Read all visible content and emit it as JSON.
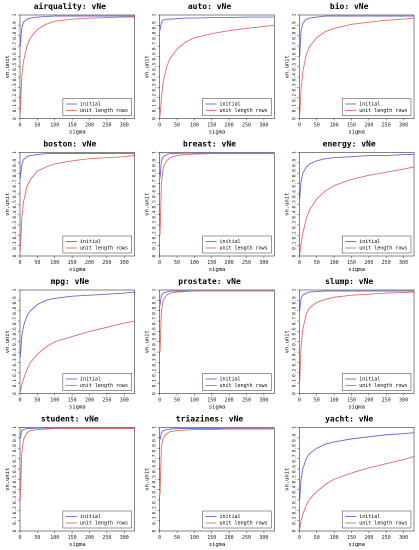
{
  "panel_grid": {
    "columns": 3,
    "rows": 4
  },
  "chart_data": [
    {
      "type": "line",
      "title": "airquality: vNe",
      "xlabel": "sigma",
      "ylabel": "vn.unit",
      "xlim": [
        0,
        330
      ],
      "ylim": [
        0,
        1
      ],
      "xticks": [
        0,
        50,
        100,
        150,
        200,
        250,
        300
      ],
      "yticks": [
        0,
        0.1,
        0.2,
        0.3,
        0.4,
        0.5,
        0.6,
        0.7,
        0.8,
        0.9,
        1
      ],
      "x": [
        1,
        5,
        10,
        20,
        30,
        50,
        75,
        100,
        150,
        200,
        250,
        300,
        330
      ],
      "series": [
        {
          "name": "initial",
          "color": "#6666dd",
          "values": [
            0.7,
            0.87,
            0.93,
            0.96,
            0.97,
            0.98,
            0.985,
            0.99,
            0.99,
            0.99,
            0.99,
            0.99,
            0.99
          ]
        },
        {
          "name": "unit length rows",
          "color": "#e26a6a",
          "values": [
            0.05,
            0.4,
            0.55,
            0.7,
            0.78,
            0.86,
            0.91,
            0.94,
            0.96,
            0.97,
            0.975,
            0.98,
            0.98
          ]
        }
      ],
      "legend_position": "bottom-right"
    },
    {
      "type": "line",
      "title": "auto: vNe",
      "xlabel": "sigma",
      "ylabel": "vn.unit",
      "xlim": [
        0,
        330
      ],
      "ylim": [
        0,
        1
      ],
      "xticks": [
        0,
        50,
        100,
        150,
        200,
        250,
        300
      ],
      "yticks": [
        0,
        0.1,
        0.2,
        0.3,
        0.4,
        0.5,
        0.6,
        0.7,
        0.8,
        0.9,
        1
      ],
      "x": [
        1,
        5,
        10,
        20,
        30,
        50,
        75,
        100,
        150,
        200,
        250,
        300,
        330
      ],
      "series": [
        {
          "name": "initial",
          "color": "#6666dd",
          "values": [
            0.85,
            0.93,
            0.95,
            0.96,
            0.96,
            0.965,
            0.97,
            0.97,
            0.975,
            0.975,
            0.98,
            0.98,
            0.98
          ]
        },
        {
          "name": "unit length rows",
          "color": "#e26a6a",
          "values": [
            0.02,
            0.2,
            0.35,
            0.5,
            0.58,
            0.67,
            0.74,
            0.78,
            0.82,
            0.85,
            0.87,
            0.89,
            0.9
          ]
        }
      ],
      "legend_position": "bottom-right"
    },
    {
      "type": "line",
      "title": "bio: vNe",
      "xlabel": "sigma",
      "ylabel": "vn.unit",
      "xlim": [
        0,
        330
      ],
      "ylim": [
        0,
        1
      ],
      "xticks": [
        0,
        50,
        100,
        150,
        200,
        250,
        300
      ],
      "yticks": [
        0,
        0.1,
        0.2,
        0.3,
        0.4,
        0.5,
        0.6,
        0.7,
        0.8,
        0.9,
        1
      ],
      "x": [
        1,
        5,
        10,
        20,
        30,
        50,
        75,
        100,
        150,
        200,
        250,
        300,
        330
      ],
      "series": [
        {
          "name": "initial",
          "color": "#6666dd",
          "values": [
            0.6,
            0.85,
            0.92,
            0.96,
            0.97,
            0.98,
            0.99,
            0.99,
            0.99,
            0.99,
            0.99,
            0.99,
            0.99
          ]
        },
        {
          "name": "unit length rows",
          "color": "#e26a6a",
          "values": [
            0.03,
            0.28,
            0.45,
            0.62,
            0.7,
            0.78,
            0.84,
            0.87,
            0.91,
            0.93,
            0.95,
            0.96,
            0.97
          ]
        }
      ],
      "legend_position": "bottom-right"
    },
    {
      "type": "line",
      "title": "boston: vNe",
      "xlabel": "sigma",
      "ylabel": "vn.unit",
      "xlim": [
        0,
        330
      ],
      "ylim": [
        0,
        1
      ],
      "xticks": [
        0,
        50,
        100,
        150,
        200,
        250,
        300
      ],
      "yticks": [
        0,
        0.1,
        0.2,
        0.3,
        0.4,
        0.5,
        0.6,
        0.7,
        0.8,
        0.9,
        1
      ],
      "x": [
        1,
        5,
        10,
        20,
        30,
        50,
        75,
        100,
        150,
        200,
        250,
        300,
        330
      ],
      "series": [
        {
          "name": "initial",
          "color": "#6666dd",
          "values": [
            0.75,
            0.88,
            0.93,
            0.96,
            0.97,
            0.98,
            0.99,
            0.99,
            0.99,
            0.99,
            0.99,
            0.99,
            0.99
          ]
        },
        {
          "name": "unit length rows",
          "color": "#e26a6a",
          "values": [
            0.05,
            0.35,
            0.52,
            0.67,
            0.74,
            0.82,
            0.86,
            0.89,
            0.92,
            0.94,
            0.95,
            0.96,
            0.97
          ]
        }
      ],
      "legend_position": "bottom-right"
    },
    {
      "type": "line",
      "title": "breast: vNe",
      "xlabel": "sigma",
      "ylabel": "vn.unit",
      "xlim": [
        0,
        330
      ],
      "ylim": [
        0,
        1
      ],
      "xticks": [
        0,
        50,
        100,
        150,
        200,
        250,
        300
      ],
      "yticks": [
        0,
        0.1,
        0.2,
        0.3,
        0.4,
        0.5,
        0.6,
        0.7,
        0.8,
        0.9,
        1
      ],
      "x": [
        1,
        5,
        10,
        20,
        30,
        50,
        75,
        100,
        150,
        200,
        250,
        300,
        330
      ],
      "series": [
        {
          "name": "initial",
          "color": "#6666dd",
          "values": [
            0.75,
            0.92,
            0.96,
            0.98,
            0.99,
            0.99,
            0.995,
            0.995,
            0.995,
            0.995,
            0.995,
            0.995,
            0.995
          ]
        },
        {
          "name": "unit length rows",
          "color": "#e26a6a",
          "values": [
            0.2,
            0.7,
            0.85,
            0.92,
            0.95,
            0.97,
            0.98,
            0.985,
            0.99,
            0.99,
            0.99,
            0.99,
            0.99
          ]
        }
      ],
      "legend_position": "bottom-right"
    },
    {
      "type": "line",
      "title": "energy: vNe",
      "xlabel": "sigma",
      "ylabel": "vn.unit",
      "xlim": [
        0,
        330
      ],
      "ylim": [
        0,
        1
      ],
      "xticks": [
        0,
        50,
        100,
        150,
        200,
        250,
        300
      ],
      "yticks": [
        0,
        0.1,
        0.2,
        0.3,
        0.4,
        0.5,
        0.6,
        0.7,
        0.8,
        0.9,
        1
      ],
      "x": [
        1,
        5,
        10,
        20,
        30,
        50,
        75,
        100,
        150,
        200,
        250,
        300,
        330
      ],
      "series": [
        {
          "name": "initial",
          "color": "#6666dd",
          "values": [
            0.55,
            0.72,
            0.8,
            0.86,
            0.89,
            0.92,
            0.94,
            0.95,
            0.96,
            0.97,
            0.97,
            0.98,
            0.98
          ]
        },
        {
          "name": "unit length rows",
          "color": "#e26a6a",
          "values": [
            0.01,
            0.12,
            0.22,
            0.36,
            0.45,
            0.55,
            0.63,
            0.68,
            0.74,
            0.78,
            0.81,
            0.84,
            0.86
          ]
        }
      ],
      "legend_position": "bottom-right"
    },
    {
      "type": "line",
      "title": "mpg: vNe",
      "xlabel": "sigma",
      "ylabel": "vn.unit",
      "xlim": [
        0,
        330
      ],
      "ylim": [
        0,
        1
      ],
      "xticks": [
        0,
        50,
        100,
        150,
        200,
        250,
        300
      ],
      "yticks": [
        0,
        0.1,
        0.2,
        0.3,
        0.4,
        0.5,
        0.6,
        0.7,
        0.8,
        0.9,
        1
      ],
      "x": [
        1,
        5,
        10,
        20,
        30,
        50,
        75,
        100,
        150,
        200,
        250,
        300,
        330
      ],
      "series": [
        {
          "name": "initial",
          "color": "#6666dd",
          "values": [
            0.35,
            0.55,
            0.65,
            0.75,
            0.8,
            0.86,
            0.9,
            0.92,
            0.94,
            0.95,
            0.96,
            0.97,
            0.98
          ]
        },
        {
          "name": "unit length rows",
          "color": "#e26a6a",
          "values": [
            0.02,
            0.08,
            0.14,
            0.23,
            0.3,
            0.38,
            0.45,
            0.5,
            0.55,
            0.6,
            0.64,
            0.68,
            0.7
          ]
        }
      ],
      "legend_position": "bottom-right"
    },
    {
      "type": "line",
      "title": "prostate: vNe",
      "xlabel": "sigma",
      "ylabel": "vn.unit",
      "xlim": [
        0,
        330
      ],
      "ylim": [
        0,
        1
      ],
      "xticks": [
        0,
        50,
        100,
        150,
        200,
        250,
        300
      ],
      "yticks": [
        0,
        0.1,
        0.2,
        0.3,
        0.4,
        0.5,
        0.6,
        0.7,
        0.8,
        0.9,
        1
      ],
      "x": [
        1,
        5,
        10,
        20,
        30,
        50,
        75,
        100,
        150,
        200,
        250,
        300,
        330
      ],
      "series": [
        {
          "name": "initial",
          "color": "#6666dd",
          "values": [
            0.85,
            0.95,
            0.97,
            0.98,
            0.99,
            0.99,
            0.99,
            0.99,
            0.99,
            0.99,
            0.99,
            0.99,
            0.99
          ]
        },
        {
          "name": "unit length rows",
          "color": "#e26a6a",
          "values": [
            0.4,
            0.8,
            0.9,
            0.95,
            0.97,
            0.98,
            0.985,
            0.99,
            0.99,
            0.99,
            0.99,
            0.99,
            0.99
          ]
        }
      ],
      "legend_position": "bottom-right"
    },
    {
      "type": "line",
      "title": "slump: vNe",
      "xlabel": "sigma",
      "ylabel": "vn.unit",
      "xlim": [
        0,
        330
      ],
      "ylim": [
        0,
        1
      ],
      "xticks": [
        0,
        50,
        100,
        150,
        200,
        250,
        300
      ],
      "yticks": [
        0,
        0.1,
        0.2,
        0.3,
        0.4,
        0.5,
        0.6,
        0.7,
        0.8,
        0.9,
        1
      ],
      "x": [
        1,
        5,
        10,
        20,
        30,
        50,
        75,
        100,
        150,
        200,
        250,
        300,
        330
      ],
      "series": [
        {
          "name": "initial",
          "color": "#6666dd",
          "values": [
            0.8,
            0.92,
            0.95,
            0.97,
            0.98,
            0.985,
            0.99,
            0.99,
            0.99,
            0.99,
            0.99,
            0.99,
            0.99
          ]
        },
        {
          "name": "unit length rows",
          "color": "#e26a6a",
          "values": [
            0.1,
            0.45,
            0.62,
            0.77,
            0.83,
            0.88,
            0.91,
            0.93,
            0.95,
            0.96,
            0.97,
            0.975,
            0.98
          ]
        }
      ],
      "legend_position": "bottom-right"
    },
    {
      "type": "line",
      "title": "student: vNe",
      "xlabel": "sigma",
      "ylabel": "vn.unit",
      "xlim": [
        0,
        330
      ],
      "ylim": [
        0,
        1
      ],
      "xticks": [
        0,
        50,
        100,
        150,
        200,
        250,
        300
      ],
      "yticks": [
        0,
        0.1,
        0.2,
        0.3,
        0.4,
        0.5,
        0.6,
        0.7,
        0.8,
        0.9,
        1
      ],
      "x": [
        1,
        5,
        10,
        20,
        30,
        50,
        75,
        100,
        150,
        200,
        250,
        300,
        330
      ],
      "series": [
        {
          "name": "initial",
          "color": "#6666dd",
          "values": [
            0.9,
            0.97,
            0.98,
            0.99,
            0.99,
            0.995,
            0.995,
            0.995,
            0.995,
            0.995,
            0.995,
            0.995,
            0.995
          ]
        },
        {
          "name": "unit length rows",
          "color": "#e26a6a",
          "values": [
            0.3,
            0.75,
            0.88,
            0.95,
            0.97,
            0.98,
            0.985,
            0.99,
            0.99,
            0.99,
            0.99,
            0.99,
            0.99
          ]
        }
      ],
      "legend_position": "bottom-right"
    },
    {
      "type": "line",
      "title": "triazines: vNe",
      "xlabel": "sigma",
      "ylabel": "vn.unit",
      "xlim": [
        0,
        330
      ],
      "ylim": [
        0,
        1
      ],
      "xticks": [
        0,
        50,
        100,
        150,
        200,
        250,
        300
      ],
      "yticks": [
        0,
        0.1,
        0.2,
        0.3,
        0.4,
        0.5,
        0.6,
        0.7,
        0.8,
        0.9,
        1
      ],
      "x": [
        1,
        5,
        10,
        20,
        30,
        50,
        75,
        100,
        150,
        200,
        250,
        300,
        330
      ],
      "series": [
        {
          "name": "initial",
          "color": "#6666dd",
          "values": [
            0.88,
            0.95,
            0.97,
            0.98,
            0.985,
            0.99,
            0.99,
            0.99,
            0.99,
            0.99,
            0.99,
            0.99,
            0.99
          ]
        },
        {
          "name": "unit length rows",
          "color": "#e26a6a",
          "values": [
            0.35,
            0.82,
            0.9,
            0.94,
            0.96,
            0.97,
            0.975,
            0.98,
            0.98,
            0.985,
            0.985,
            0.985,
            0.985
          ]
        }
      ],
      "legend_position": "bottom-right"
    },
    {
      "type": "line",
      "title": "yacht: vNe",
      "xlabel": "sigma",
      "ylabel": "vn.unit",
      "xlim": [
        0,
        330
      ],
      "ylim": [
        0,
        1
      ],
      "xticks": [
        0,
        50,
        100,
        150,
        200,
        250,
        300
      ],
      "yticks": [
        0,
        0.1,
        0.2,
        0.3,
        0.4,
        0.5,
        0.6,
        0.7,
        0.8,
        0.9,
        1
      ],
      "x": [
        1,
        5,
        10,
        20,
        30,
        50,
        75,
        100,
        150,
        200,
        250,
        300,
        330
      ],
      "series": [
        {
          "name": "initial",
          "color": "#6666dd",
          "values": [
            0.3,
            0.5,
            0.6,
            0.7,
            0.75,
            0.8,
            0.84,
            0.86,
            0.89,
            0.91,
            0.93,
            0.94,
            0.95
          ]
        },
        {
          "name": "unit length rows",
          "color": "#e26a6a",
          "values": [
            0.02,
            0.1,
            0.16,
            0.25,
            0.31,
            0.38,
            0.45,
            0.5,
            0.56,
            0.61,
            0.65,
            0.69,
            0.72
          ]
        }
      ],
      "legend_position": "bottom-right"
    }
  ]
}
